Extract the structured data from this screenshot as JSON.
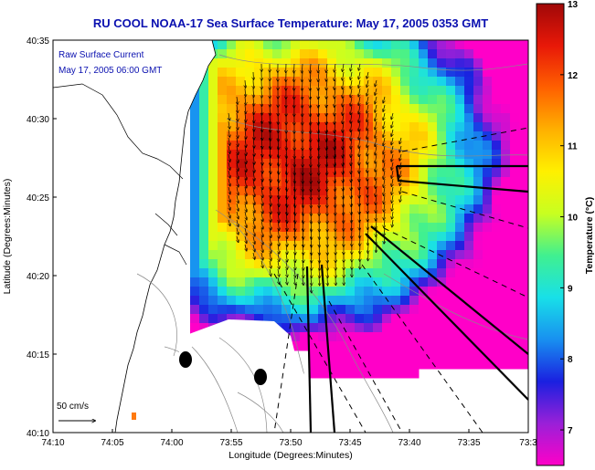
{
  "title": "RU COOL  NOAA-17  Sea Surface Temperature:  May 17, 2005 0353 GMT",
  "annotation": {
    "line1": "Raw Surface Current",
    "line2": "May 17, 2005 06:00 GMT",
    "scale_label": "50 cm/s"
  },
  "axes": {
    "xlabel": "Longitude (Degrees:Minutes)",
    "ylabel": "Latitude (Degrees:Minutes)",
    "x_ticks": [
      "74:10",
      "74:05",
      "74:00",
      "73:55",
      "73:50",
      "73:45",
      "73:40",
      "73:35",
      "73:3"
    ],
    "y_ticks": [
      "40:35",
      "40:30",
      "40:25",
      "40:20",
      "40:15",
      "40:10"
    ]
  },
  "colorbar": {
    "label": "Temperature (°C)",
    "ticks": [
      "13",
      "12",
      "11",
      "10",
      "9",
      "8",
      "7"
    ],
    "range": [
      6.5,
      13
    ],
    "stops": [
      "#ff00c8",
      "#9a20d8",
      "#1a20e0",
      "#1890f0",
      "#18e0e8",
      "#40f090",
      "#c8ff20",
      "#fff000",
      "#ffb000",
      "#ff6000",
      "#e81808",
      "#a00808"
    ]
  },
  "chart_data": {
    "type": "heatmap",
    "title": "RU COOL  NOAA-17  Sea Surface Temperature:  May 17, 2005 0353 GMT",
    "xlabel": "Longitude (Degrees:Minutes)",
    "ylabel": "Latitude (Degrees:Minutes)",
    "x_ticks": [
      "74:10",
      "74:05",
      "74:00",
      "73:55",
      "73:50",
      "73:45",
      "73:40",
      "73:35",
      "73:3"
    ],
    "y_ticks": [
      "40:35",
      "40:30",
      "40:25",
      "40:20",
      "40:15",
      "40:10"
    ],
    "value_range": [
      7,
      13
    ],
    "units": "°C",
    "overlay": "Raw Surface Current vectors, May 17, 2005 06:00 GMT"
  }
}
